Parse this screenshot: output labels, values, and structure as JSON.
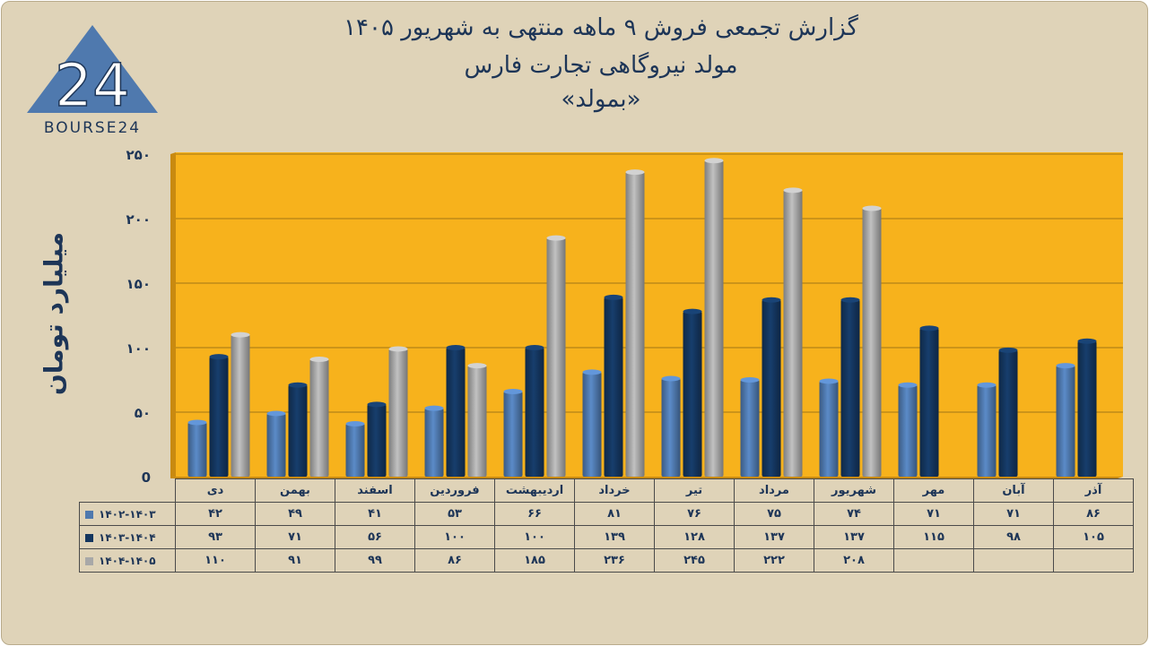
{
  "header": {
    "title_line1": "گزارش تجمعی فروش ۹ ماهه منتهی به شهریور ۱۴۰۵",
    "title_line2": "مولد نیروگاهی تجارت فارس",
    "title_line3": "«بمولد»",
    "logo_text": "BOURSE24",
    "logo_mark": "24"
  },
  "colors": {
    "series1": "#4f79ae",
    "series2": "#14365f",
    "series3": "#a8a8a8",
    "plot_bg": "#f7b21c"
  },
  "chart_data": {
    "type": "bar",
    "ylabel": "میلیارد تومان",
    "ylim": [
      0,
      250
    ],
    "yticks": [
      0,
      50,
      100,
      150,
      200,
      250
    ],
    "ytick_labels": [
      "0",
      "۵۰",
      "۱۰۰",
      "۱۵۰",
      "۲۰۰",
      "۲۵۰"
    ],
    "grid": true,
    "categories": [
      "دی",
      "بهمن",
      "اسفند",
      "فروردین",
      "اردیبهشت",
      "خرداد",
      "تیر",
      "مرداد",
      "شهریور",
      "مهر",
      "آبان",
      "آذر"
    ],
    "series": [
      {
        "name": "۱۴۰۲-۱۴۰۳",
        "values": [
          42,
          49,
          41,
          53,
          66,
          81,
          76,
          75,
          74,
          71,
          71,
          86
        ],
        "labels": [
          "۴۲",
          "۴۹",
          "۴۱",
          "۵۳",
          "۶۶",
          "۸۱",
          "۷۶",
          "۷۵",
          "۷۴",
          "۷۱",
          "۷۱",
          "۸۶"
        ]
      },
      {
        "name": "۱۴۰۳-۱۴۰۴",
        "values": [
          93,
          71,
          56,
          100,
          100,
          139,
          128,
          137,
          137,
          115,
          98,
          105
        ],
        "labels": [
          "۹۳",
          "۷۱",
          "۵۶",
          "۱۰۰",
          "۱۰۰",
          "۱۳۹",
          "۱۲۸",
          "۱۳۷",
          "۱۳۷",
          "۱۱۵",
          "۹۸",
          "۱۰۵"
        ]
      },
      {
        "name": "۱۴۰۴-۱۴۰۵",
        "values": [
          110,
          91,
          99,
          86,
          185,
          236,
          245,
          222,
          208,
          null,
          null,
          null
        ],
        "labels": [
          "۱۱۰",
          "۹۱",
          "۹۹",
          "۸۶",
          "۱۸۵",
          "۲۳۶",
          "۲۴۵",
          "۲۲۲",
          "۲۰۸",
          "",
          "",
          ""
        ]
      }
    ]
  }
}
